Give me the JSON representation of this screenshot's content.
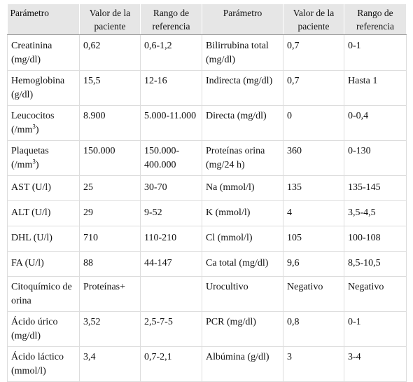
{
  "table": {
    "headers": [
      "Parámetro",
      "Valor de la paciente",
      "Rango de referencia",
      "Parámetro",
      "Valor de la paciente",
      "Rango de referencia"
    ],
    "rows": [
      [
        "Creatinina (mg/dl)",
        "0,62",
        "0,6-1,2",
        "Bilirrubina total (mg/dl)",
        "0,7",
        "0-1"
      ],
      [
        "Hemoglobina (g/dl)",
        "15,5",
        "12-16",
        "Indirecta (mg/dl)",
        "0,7",
        "Hasta 1"
      ],
      [
        "Leucocitos (/mm",
        "8.900",
        "5.000-11.000",
        "Directa (mg/dl)",
        "0",
        "0-0,4"
      ],
      [
        "Plaquetas (/mm",
        "150.000",
        "150.000-400.000",
        "Proteínas orina (mg/24 h)",
        "360",
        "0-130"
      ],
      [
        "AST (U/l)",
        "25",
        "30-70",
        "Na (mmol/l)",
        "135",
        "135-145"
      ],
      [
        "ALT (U/l)",
        "29",
        "9-52",
        "K (mmol/l)",
        "4",
        "3,5-4,5"
      ],
      [
        "DHL (U/l)",
        "710",
        "110-210",
        "Cl (mmol/l)",
        "105",
        "100-108"
      ],
      [
        "FA (U/l)",
        "88",
        "44-147",
        "Ca total (mg/dl)",
        "9,6",
        "8,5-10,5"
      ],
      [
        "Citoquímico de orina",
        "Proteínas+",
        "",
        "Urocultivo",
        "Negativo",
        "Negativo"
      ],
      [
        "Ácido úrico (mg/dl)",
        "3,52",
        "2,5-7-5",
        "PCR (mg/dl)",
        "0,8",
        "0-1"
      ],
      [
        "Ácido láctico (mmol/l)",
        "3,4",
        "0,7-2,1",
        "Albúmina (g/dl)",
        "3",
        "3-4"
      ]
    ],
    "superscript_3": "3",
    "close_paren": ")"
  }
}
